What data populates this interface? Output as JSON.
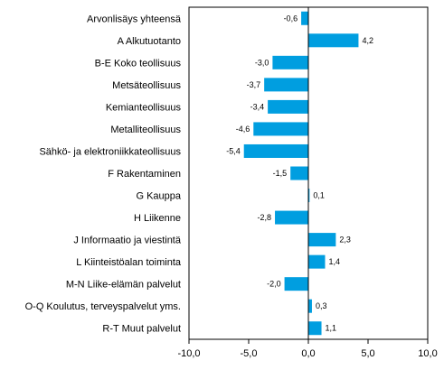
{
  "chart_data": {
    "type": "bar",
    "orientation": "horizontal",
    "title": "",
    "xlabel": "",
    "ylabel": "",
    "categories": [
      "Arvonlisäys yhteensä",
      "A Alkutuotanto",
      "B-E Koko teollisuus",
      "Metsäteollisuus",
      "Kemianteollisuus",
      "Metalliteollisuus",
      "Sähkö- ja elektroniikkateollisuus",
      "F Rakentaminen",
      "G Kauppa",
      "H Liikenne",
      "J Informaatio ja viestintä",
      "L Kiinteistöalan toiminta",
      "M-N Liike-elämän palvelut",
      "O-Q Koulutus, terveyspalvelut yms.",
      "R-T Muut palvelut"
    ],
    "values": [
      -0.6,
      4.2,
      -3.0,
      -3.7,
      -3.4,
      -4.6,
      -5.4,
      -1.5,
      0.1,
      -2.8,
      2.3,
      1.4,
      -2.0,
      0.3,
      1.1
    ],
    "value_labels": [
      "-0,6",
      "4,2",
      "-3,0",
      "-3,7",
      "-3,4",
      "-4,6",
      "-5,4",
      "-1,5",
      "0,1",
      "-2,8",
      "2,3",
      "1,4",
      "-2,0",
      "0,3",
      "1,1"
    ],
    "xlim": [
      -10,
      10
    ],
    "x_ticks": [
      -10,
      -5,
      0,
      5,
      10
    ],
    "x_tick_labels": [
      "-10,0",
      "-5,0",
      "0,0",
      "5,0",
      "10,0"
    ],
    "grid": false,
    "legend": "none",
    "bar_color": "#009ee0"
  }
}
